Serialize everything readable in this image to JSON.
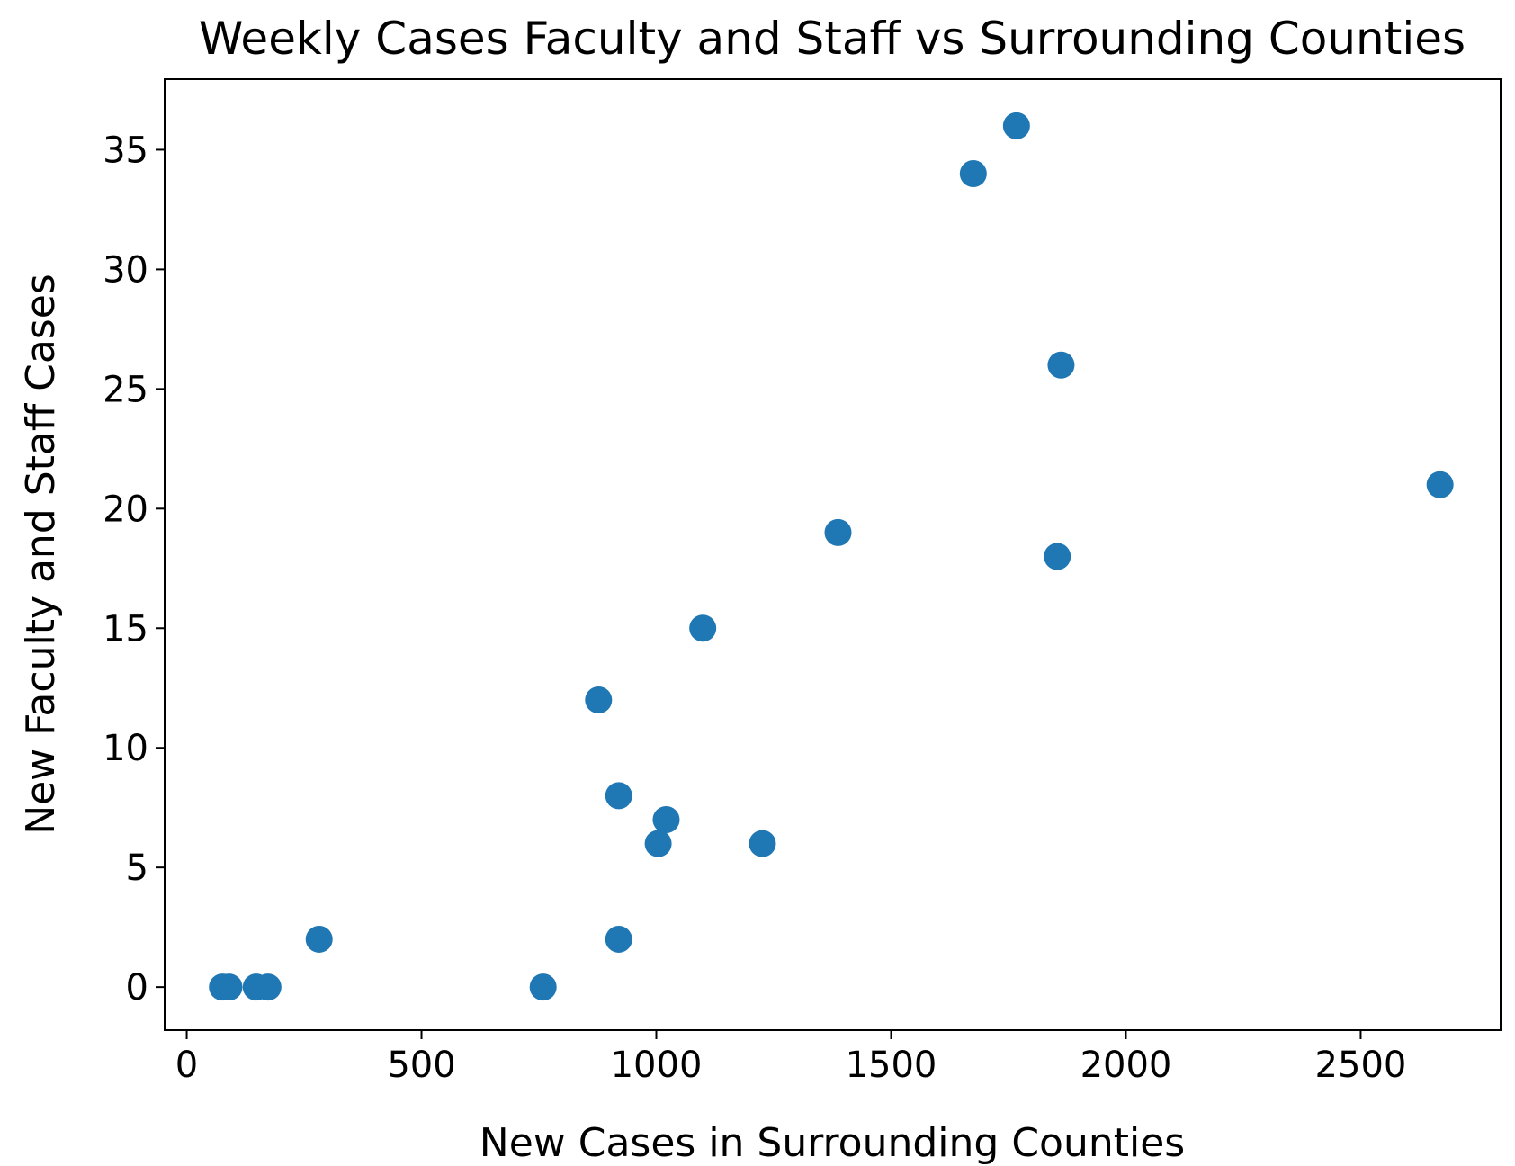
{
  "chart_data": {
    "type": "scatter",
    "title": "Weekly Cases Faculty and Staff vs Surrounding Counties",
    "x_label": "New Cases in Surrounding Counties",
    "y_label": "New Faculty and Staff Cases",
    "color": "#1f77b4",
    "x": [
      76,
      90,
      148,
      173,
      282,
      759,
      920,
      877,
      920,
      1021,
      1004,
      1226,
      1099,
      1387,
      1675,
      1767,
      1862,
      1854,
      2669
    ],
    "values": [
      0,
      0,
      0,
      0,
      2,
      0,
      2,
      12,
      8,
      7,
      6,
      6,
      15,
      19,
      34,
      36,
      26,
      18,
      21
    ],
    "xlim": [
      -47,
      2798
    ],
    "ylim": [
      -1.8,
      37.95
    ],
    "xticks": [
      0,
      500,
      1000,
      1500,
      2000,
      2500
    ],
    "yticks": [
      0,
      5,
      10,
      15,
      20,
      25,
      30,
      35
    ]
  }
}
